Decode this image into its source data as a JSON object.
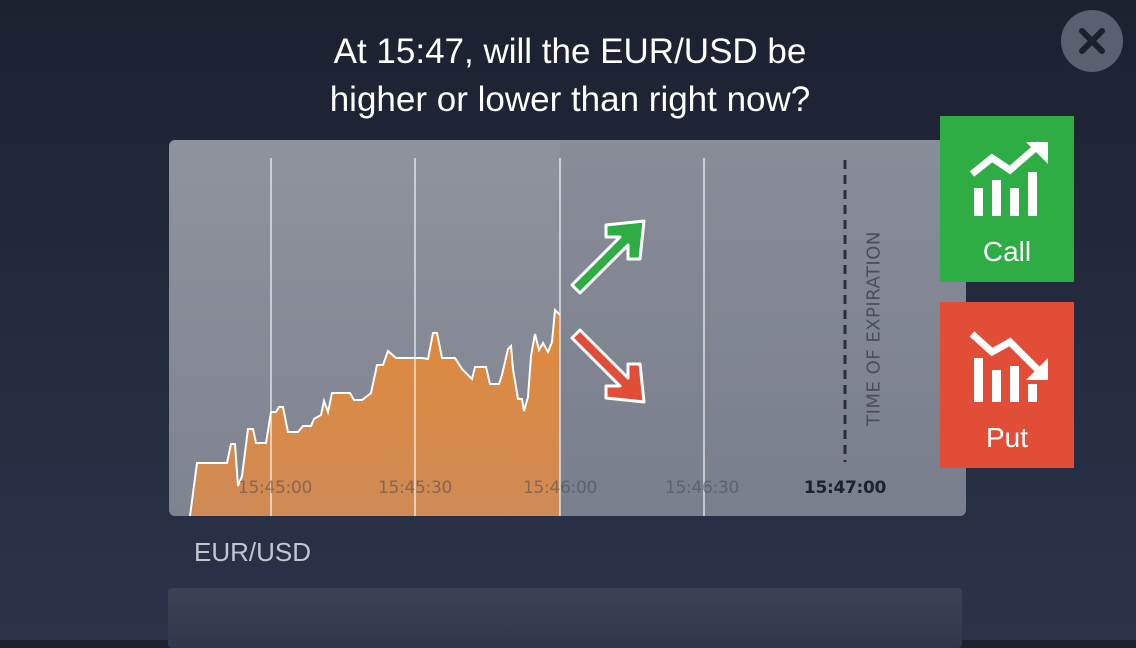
{
  "question": {
    "line1": "At 15:47, will the EUR/USD be",
    "line2": "higher or lower than right now?"
  },
  "close": {
    "icon": "close-icon"
  },
  "chart": {
    "ticks": [
      "15:45:00",
      "15:45:30",
      "15:46:00",
      "15:46:30",
      "15:47:00"
    ],
    "expiry_label": "TIME OF EXPIRATION",
    "up_color": "#2fad45",
    "down_color": "#e24d38",
    "area_color": "#e08a3c"
  },
  "buttons": {
    "call": {
      "label": "Call",
      "icon": "trend-up-icon",
      "color": "#2fad45"
    },
    "put": {
      "label": "Put",
      "icon": "trend-down-icon",
      "color": "#e24d38"
    }
  },
  "asset": {
    "name": "EUR/USD"
  }
}
